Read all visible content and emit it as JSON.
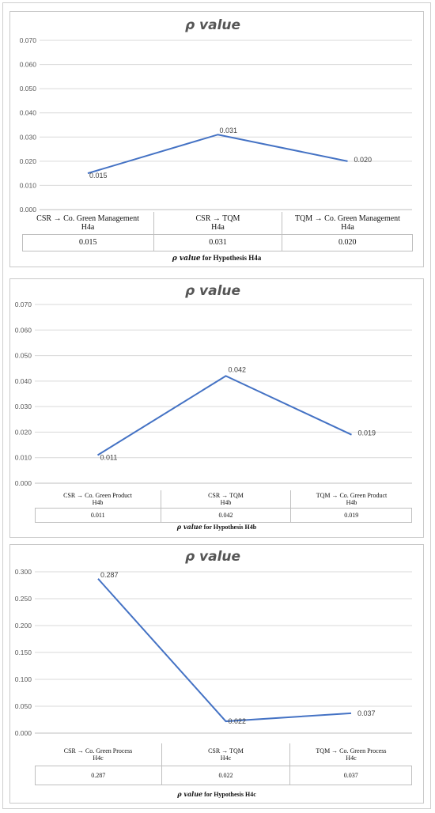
{
  "chart_data": [
    {
      "type": "line",
      "title": "ρ value",
      "categories": [
        "CSR → Co. Green Management\nH4a",
        "CSR → TQM\nH4a",
        "TQM → Co. Green Management\nH4a"
      ],
      "values": [
        0.015,
        0.031,
        0.02
      ],
      "value_labels": [
        "0.015",
        "0.031",
        "0.020"
      ],
      "yticks": [
        "0.000",
        "0.010",
        "0.020",
        "0.030",
        "0.040",
        "0.050",
        "0.060",
        "0.070"
      ],
      "ylim": [
        0,
        0.07
      ],
      "grid": true,
      "line_color": "#4472C4",
      "caption_symbol": "ρ value",
      "caption_text": " for Hypothesis H4a"
    },
    {
      "type": "line",
      "title": "ρ value",
      "categories": [
        "CSR → Co. Green Product\nH4b",
        "CSR → TQM\nH4b",
        "TQM → Co. Green Product\nH4b"
      ],
      "values": [
        0.011,
        0.042,
        0.019
      ],
      "value_labels": [
        "0.011",
        "0.042",
        "0.019"
      ],
      "yticks": [
        "0.000",
        "0.010",
        "0.020",
        "0.030",
        "0.040",
        "0.050",
        "0.060",
        "0.070"
      ],
      "ylim": [
        0,
        0.07
      ],
      "grid": true,
      "line_color": "#4472C4",
      "caption_symbol": "ρ value",
      "caption_text": " for Hypothesis H4b"
    },
    {
      "type": "line",
      "title": "ρ value",
      "categories": [
        "CSR → Co. Green Process\nH4c",
        "CSR → TQM\nH4c",
        "TQM → Co. Green Process\nH4c"
      ],
      "values": [
        0.287,
        0.022,
        0.037
      ],
      "value_labels": [
        "0.287",
        "0.022",
        "0.037"
      ],
      "yticks": [
        "0.000",
        "0.050",
        "0.100",
        "0.150",
        "0.200",
        "0.250",
        "0.300"
      ],
      "ylim": [
        0,
        0.3
      ],
      "grid": true,
      "line_color": "#4472C4",
      "caption_symbol": "ρ value",
      "caption_text": " for Hypothesis H4c"
    }
  ]
}
